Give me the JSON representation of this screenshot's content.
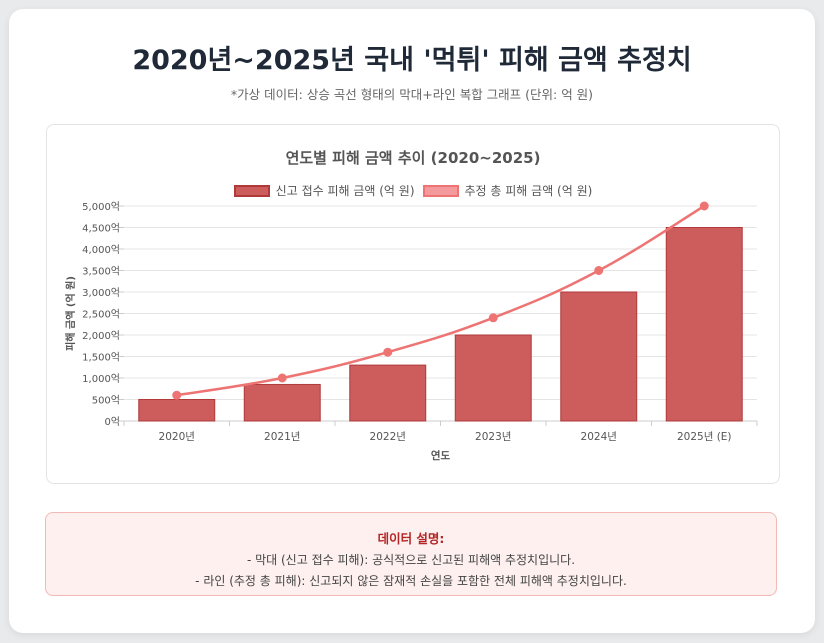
{
  "page": {
    "title": "2020년~2025년 국내 '먹튀' 피해 금액 추정치",
    "subtitle": "*가상 데이터: 상승 곡선 형태의 막대+라인 복합 그래프 (단위: 억 원)"
  },
  "colors": {
    "bar_fill": "#cd5c5c",
    "bar_border": "#b03a3a",
    "line": "#ee7474",
    "legend_line_fill": "#f4999c",
    "grid": "#e5e5e5"
  },
  "chart_data": {
    "type": "bar",
    "title": "연도별 피해 금액 추이 (2020~2025)",
    "categories": [
      "2020년",
      "2021년",
      "2022년",
      "2023년",
      "2024년",
      "2025년 (E)"
    ],
    "series": [
      {
        "name": "신고 접수 피해 금액 (억 원)",
        "kind": "bar",
        "values": [
          500,
          850,
          1300,
          2000,
          3000,
          4500
        ]
      },
      {
        "name": "추정 총 피해 금액 (억 원)",
        "kind": "line",
        "values": [
          600,
          1000,
          1600,
          2400,
          3500,
          5000
        ]
      }
    ],
    "xlabel": "연도",
    "ylabel": "피해 금액 (억 원)",
    "ylim": [
      0,
      5000
    ],
    "yticks": [
      "0억",
      "500억",
      "1,000억",
      "1,500억",
      "2,000억",
      "2,500억",
      "3,000억",
      "3,500억",
      "4,000억",
      "4,500억",
      "5,000억"
    ],
    "grid": true,
    "legend": "top"
  },
  "note": {
    "title": "데이터 설명:",
    "lines": [
      "- 막대 (신고 접수 피해): 공식적으로 신고된 피해액 추정치입니다.",
      "- 라인 (추정 총 피해): 신고되지 않은 잠재적 손실을 포함한 전체 피해액 추정치입니다."
    ]
  }
}
